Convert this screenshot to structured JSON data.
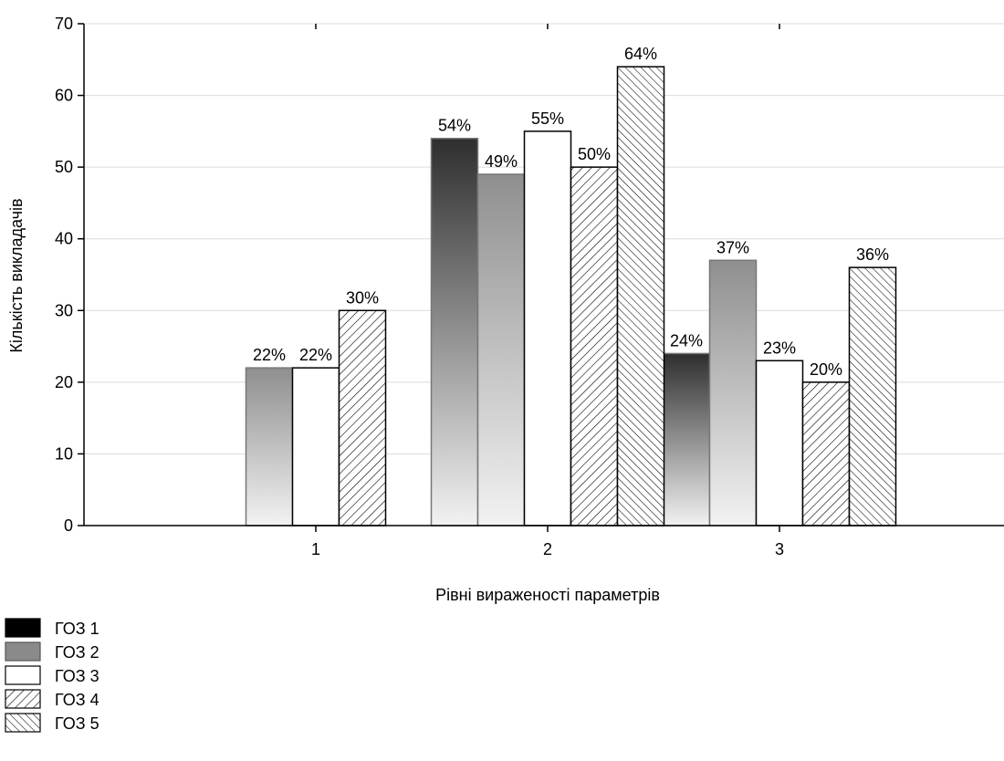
{
  "chart_data": {
    "type": "bar",
    "categories": [
      "1",
      "2",
      "3"
    ],
    "series": [
      {
        "name": "ГОЗ 1",
        "values": [
          0,
          54,
          24
        ],
        "labels": [
          "",
          "54%",
          "24%"
        ],
        "fill": "gradient-dark"
      },
      {
        "name": "ГОЗ 2",
        "values": [
          22,
          49,
          37
        ],
        "labels": [
          "22%",
          "49%",
          "37%"
        ],
        "fill": "gradient-light"
      },
      {
        "name": "ГОЗ 3",
        "values": [
          22,
          55,
          23
        ],
        "labels": [
          "22%",
          "55%",
          "23%"
        ],
        "fill": "white"
      },
      {
        "name": "ГОЗ 4",
        "values": [
          30,
          50,
          20
        ],
        "labels": [
          "30%",
          "50%",
          "20%"
        ],
        "fill": "hatch-forward"
      },
      {
        "name": "ГОЗ 5",
        "values": [
          0,
          64,
          36
        ],
        "labels": [
          "",
          "64%",
          "36%"
        ],
        "fill": "hatch-back"
      }
    ],
    "xlabel": "Рівні вираженості параметрів",
    "ylabel": "Кількість викладачів",
    "ylim": [
      0,
      70
    ],
    "yticks": [
      0,
      10,
      20,
      30,
      40,
      50,
      60,
      70
    ],
    "grid": true,
    "legend": "bottom-left"
  }
}
